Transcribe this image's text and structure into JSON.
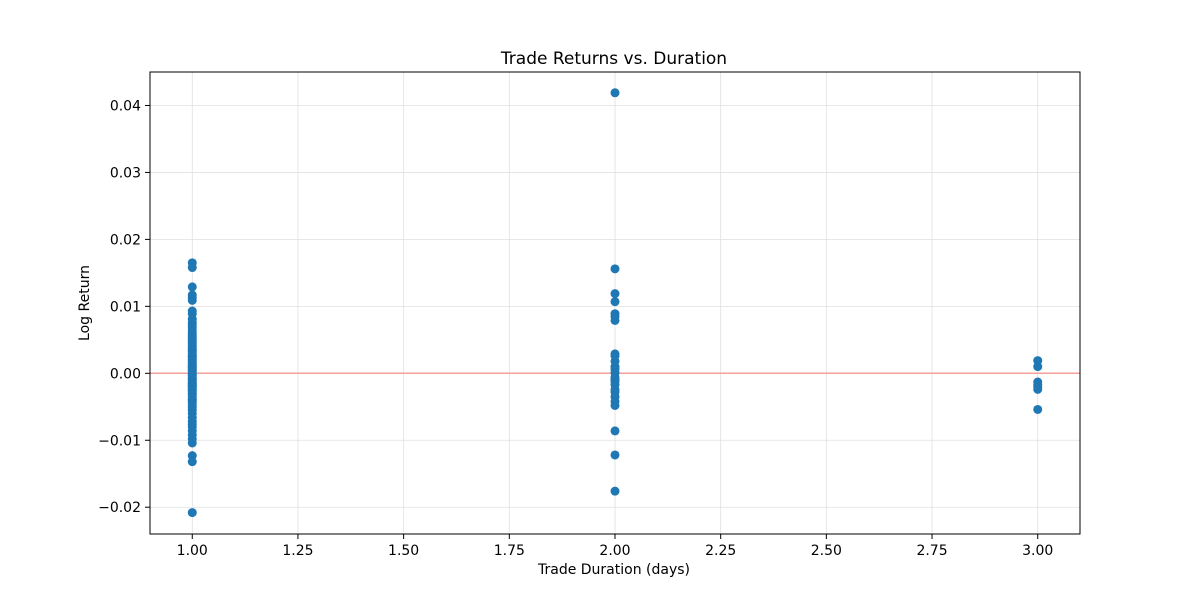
{
  "chart_data": {
    "type": "scatter",
    "title": "Trade Returns vs. Duration",
    "xlabel": "Trade Duration (days)",
    "ylabel": "Log Return",
    "xlim": [
      0.9,
      3.1
    ],
    "ylim": [
      -0.024,
      0.045
    ],
    "xticks": [
      1.0,
      1.25,
      1.5,
      1.75,
      2.0,
      2.25,
      2.5,
      2.75,
      3.0
    ],
    "xtick_labels": [
      "1.00",
      "1.25",
      "1.50",
      "1.75",
      "2.00",
      "2.25",
      "2.50",
      "2.75",
      "3.00"
    ],
    "yticks": [
      -0.02,
      -0.01,
      0.0,
      0.01,
      0.02,
      0.03,
      0.04
    ],
    "ytick_labels": [
      "−0.02",
      "−0.01",
      "0.00",
      "0.01",
      "0.02",
      "0.03",
      "0.04"
    ],
    "grid": true,
    "reference_line": {
      "y": 0.0,
      "color": "#f4a19b"
    },
    "marker_color": "#1f77b4",
    "series": [
      {
        "x": [
          1,
          1,
          1,
          1,
          1,
          1,
          1,
          1,
          1,
          1,
          1,
          1,
          1,
          1,
          1,
          1,
          1,
          1,
          1,
          1,
          1,
          1,
          1,
          1,
          1,
          1,
          1,
          1,
          1,
          1,
          1,
          1,
          1,
          1,
          1,
          1,
          1,
          1,
          1,
          1,
          1,
          1,
          1,
          1,
          1,
          1,
          1,
          1,
          1,
          1,
          1,
          1,
          1,
          1,
          1,
          1,
          1,
          1,
          1,
          1,
          1,
          1,
          1,
          1,
          1,
          1,
          1,
          1,
          1,
          1,
          1,
          1,
          1,
          1,
          1,
          1,
          1,
          1,
          1,
          1,
          2,
          2,
          2,
          2,
          2,
          2,
          2,
          2,
          2,
          2,
          2,
          2,
          2,
          2,
          2,
          2,
          2,
          2,
          2,
          2,
          2,
          2,
          2,
          2,
          2,
          3,
          3,
          3,
          3,
          3,
          3,
          3
        ],
        "y": [
          0.0165,
          0.0158,
          0.0129,
          0.0117,
          0.0113,
          0.0109,
          0.0093,
          0.0089,
          0.0081,
          0.0076,
          0.0072,
          0.0068,
          0.0064,
          0.006,
          0.0057,
          0.0054,
          0.0051,
          0.0048,
          0.0045,
          0.0042,
          0.0039,
          0.0036,
          0.0033,
          0.003,
          0.0027,
          0.0024,
          0.0021,
          0.0018,
          0.0015,
          0.0012,
          0.0009,
          0.0006,
          0.0003,
          0.0,
          -0.0003,
          -0.0006,
          -0.0009,
          -0.0012,
          -0.0015,
          -0.0018,
          -0.0021,
          -0.0024,
          -0.0027,
          -0.003,
          -0.0033,
          -0.0036,
          -0.0039,
          -0.0042,
          -0.0045,
          -0.0048,
          -0.0051,
          -0.0055,
          -0.006,
          -0.0066,
          -0.0072,
          -0.0076,
          -0.008,
          -0.0086,
          -0.0092,
          -0.0098,
          -0.0104,
          -0.0123,
          -0.0132,
          -0.0208,
          0.002,
          0.0015,
          0.001,
          0.0005,
          -0.0002,
          -0.0008,
          -0.0012,
          -0.0016,
          -0.002,
          -0.0025,
          -0.003,
          0.0035,
          -0.004,
          0.0025,
          -0.0018,
          0.0008,
          0.0419,
          0.0156,
          0.0119,
          0.0107,
          0.0089,
          0.0085,
          0.0079,
          0.0029,
          0.0026,
          0.0018,
          0.001,
          0.0006,
          0.0001,
          -0.0006,
          -0.0009,
          -0.0012,
          -0.0017,
          -0.0024,
          -0.0028,
          -0.0035,
          -0.0042,
          -0.0048,
          -0.0086,
          -0.0122,
          -0.0176,
          0.0019,
          0.001,
          -0.0013,
          -0.0017,
          -0.002,
          -0.0024,
          -0.0054
        ]
      }
    ]
  }
}
